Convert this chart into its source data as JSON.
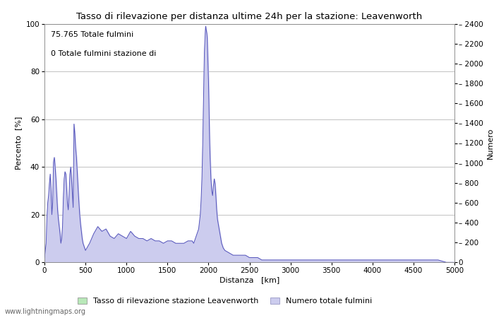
{
  "title": "Tasso di rilevazione per distanza ultime 24h per la stazione: Leavenworth",
  "xlabel": "Distanza   [km]",
  "ylabel_left": "Percento  [%]",
  "ylabel_right": "Numero",
  "annotation_line1": "75.765 Totale fulmini",
  "annotation_line2": "0 Totale fulmini stazione di",
  "legend_label1": "Tasso di rilevazione stazione Leavenworth",
  "legend_label2": "Numero totale fulmini",
  "legend_color1": "#b8e8b8",
  "legend_color2": "#ccccee",
  "line_color": "#5555bb",
  "fill_color": "#ccccee",
  "watermark": "www.lightningmaps.org",
  "xlim": [
    0,
    5000
  ],
  "ylim_left": [
    0,
    100
  ],
  "ylim_right": [
    0,
    2400
  ],
  "xticks": [
    0,
    500,
    1000,
    1500,
    2000,
    2500,
    3000,
    3500,
    4000,
    4500,
    5000
  ],
  "yticks_left": [
    0,
    20,
    40,
    60,
    80,
    100
  ],
  "yticks_right": [
    0,
    200,
    400,
    600,
    800,
    1000,
    1200,
    1400,
    1600,
    1800,
    2000,
    2200,
    2400
  ],
  "landmarks": [
    [
      0,
      2
    ],
    [
      10,
      5
    ],
    [
      20,
      8
    ],
    [
      30,
      19
    ],
    [
      40,
      25
    ],
    [
      50,
      28
    ],
    [
      60,
      33
    ],
    [
      70,
      37
    ],
    [
      80,
      30
    ],
    [
      90,
      20
    ],
    [
      100,
      25
    ],
    [
      110,
      42
    ],
    [
      120,
      44
    ],
    [
      130,
      40
    ],
    [
      140,
      35
    ],
    [
      150,
      28
    ],
    [
      160,
      22
    ],
    [
      170,
      18
    ],
    [
      180,
      15
    ],
    [
      190,
      12
    ],
    [
      200,
      8
    ],
    [
      210,
      10
    ],
    [
      220,
      15
    ],
    [
      230,
      27
    ],
    [
      240,
      35
    ],
    [
      250,
      38
    ],
    [
      260,
      37
    ],
    [
      270,
      31
    ],
    [
      280,
      25
    ],
    [
      290,
      22
    ],
    [
      300,
      28
    ],
    [
      310,
      37
    ],
    [
      320,
      40
    ],
    [
      330,
      35
    ],
    [
      340,
      29
    ],
    [
      350,
      23
    ],
    [
      360,
      58
    ],
    [
      370,
      54
    ],
    [
      380,
      48
    ],
    [
      390,
      44
    ],
    [
      400,
      38
    ],
    [
      410,
      31
    ],
    [
      420,
      25
    ],
    [
      430,
      20
    ],
    [
      440,
      16
    ],
    [
      450,
      13
    ],
    [
      460,
      10
    ],
    [
      470,
      8
    ],
    [
      480,
      7
    ],
    [
      490,
      6
    ],
    [
      500,
      5
    ],
    [
      550,
      8
    ],
    [
      600,
      12
    ],
    [
      650,
      15
    ],
    [
      700,
      13
    ],
    [
      750,
      14
    ],
    [
      800,
      11
    ],
    [
      850,
      10
    ],
    [
      900,
      12
    ],
    [
      950,
      11
    ],
    [
      1000,
      10
    ],
    [
      1050,
      13
    ],
    [
      1100,
      11
    ],
    [
      1150,
      10
    ],
    [
      1200,
      10
    ],
    [
      1250,
      9
    ],
    [
      1300,
      10
    ],
    [
      1350,
      9
    ],
    [
      1400,
      9
    ],
    [
      1450,
      8
    ],
    [
      1500,
      9
    ],
    [
      1550,
      9
    ],
    [
      1600,
      8
    ],
    [
      1650,
      8
    ],
    [
      1700,
      8
    ],
    [
      1750,
      9
    ],
    [
      1800,
      9
    ],
    [
      1820,
      8
    ],
    [
      1840,
      10
    ],
    [
      1860,
      12
    ],
    [
      1880,
      14
    ],
    [
      1900,
      20
    ],
    [
      1910,
      26
    ],
    [
      1920,
      35
    ],
    [
      1930,
      50
    ],
    [
      1940,
      70
    ],
    [
      1950,
      88
    ],
    [
      1960,
      96
    ],
    [
      1965,
      99
    ],
    [
      1970,
      98
    ],
    [
      1975,
      97
    ],
    [
      1980,
      96
    ],
    [
      1985,
      94
    ],
    [
      1990,
      88
    ],
    [
      1995,
      82
    ],
    [
      2000,
      76
    ],
    [
      2005,
      68
    ],
    [
      2010,
      58
    ],
    [
      2015,
      50
    ],
    [
      2020,
      44
    ],
    [
      2030,
      35
    ],
    [
      2040,
      30
    ],
    [
      2050,
      28
    ],
    [
      2060,
      32
    ],
    [
      2070,
      35
    ],
    [
      2080,
      33
    ],
    [
      2090,
      28
    ],
    [
      2100,
      22
    ],
    [
      2110,
      18
    ],
    [
      2120,
      16
    ],
    [
      2130,
      14
    ],
    [
      2140,
      12
    ],
    [
      2150,
      10
    ],
    [
      2160,
      8
    ],
    [
      2170,
      7
    ],
    [
      2180,
      6
    ],
    [
      2200,
      5
    ],
    [
      2250,
      4
    ],
    [
      2300,
      3
    ],
    [
      2350,
      3
    ],
    [
      2400,
      3
    ],
    [
      2450,
      3
    ],
    [
      2500,
      2
    ],
    [
      2550,
      2
    ],
    [
      2600,
      2
    ],
    [
      2650,
      1
    ],
    [
      2700,
      1
    ],
    [
      2750,
      1
    ],
    [
      2800,
      1
    ],
    [
      2850,
      1
    ],
    [
      2900,
      1
    ],
    [
      2950,
      1
    ],
    [
      3000,
      1
    ],
    [
      3100,
      1
    ],
    [
      3200,
      1
    ],
    [
      3300,
      1
    ],
    [
      3400,
      1
    ],
    [
      3500,
      1
    ],
    [
      3600,
      1
    ],
    [
      3700,
      1
    ],
    [
      3800,
      1
    ],
    [
      3900,
      1
    ],
    [
      4000,
      1
    ],
    [
      4100,
      1
    ],
    [
      4200,
      1
    ],
    [
      4300,
      1
    ],
    [
      4400,
      1
    ],
    [
      4500,
      1
    ],
    [
      4600,
      1
    ],
    [
      4700,
      1
    ],
    [
      4800,
      1
    ],
    [
      4900,
      0
    ],
    [
      5000,
      0
    ]
  ]
}
